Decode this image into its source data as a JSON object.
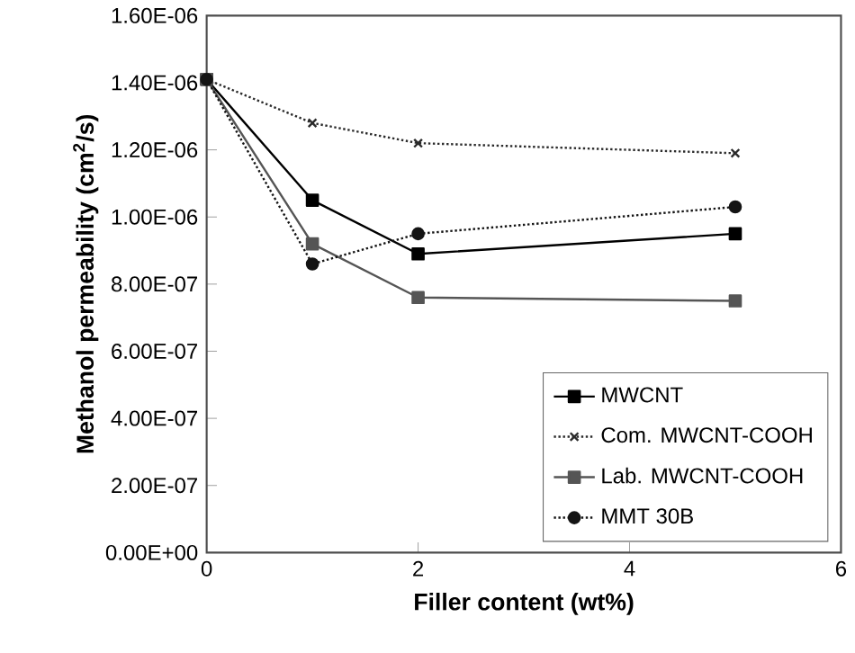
{
  "chart_data": {
    "type": "line",
    "xlabel": "Filler content (wt%)",
    "ylabel": "Methanol permeability (cm$^{2}$/s)",
    "x": [
      0,
      1,
      2,
      5
    ],
    "series": [
      {
        "name": "MWCNT",
        "color": "#000000",
        "marker": "square",
        "line_style": "solid",
        "values": [
          1.41e-06,
          1.05e-06,
          8.9e-07,
          9.5e-07
        ]
      },
      {
        "name": "Com. MWCNT-COOH",
        "color": "#2a2a2a",
        "marker": "cross",
        "line_style": "dotted",
        "values": [
          1.41e-06,
          1.28e-06,
          1.22e-06,
          1.19e-06
        ]
      },
      {
        "name": "Lab. MWCNT-COOH",
        "color": "#555555",
        "marker": "square",
        "line_style": "solid",
        "values": [
          1.41e-06,
          9.2e-07,
          7.6e-07,
          7.5e-07
        ]
      },
      {
        "name": "MMT 30B",
        "color": "#141414",
        "marker": "circle",
        "line_style": "dotted",
        "values": [
          1.41e-06,
          8.6e-07,
          9.5e-07,
          1.03e-06
        ]
      }
    ],
    "xlim": [
      0,
      6
    ],
    "xticks": [
      0,
      2,
      4,
      6
    ],
    "ylim": [
      0,
      1.6e-06
    ],
    "yticks": [
      {
        "value": 0,
        "label": "0.00E+00"
      },
      {
        "value": 2e-07,
        "label": "2.00E-07"
      },
      {
        "value": 4e-07,
        "label": "4.00E-07"
      },
      {
        "value": 6e-07,
        "label": "6.00E-07"
      },
      {
        "value": 8e-07,
        "label": "8.00E-07"
      },
      {
        "value": 1e-06,
        "label": "1.00E-06"
      },
      {
        "value": 1.2e-06,
        "label": "1.20E-06"
      },
      {
        "value": 1.4e-06,
        "label": "1.40E-06"
      },
      {
        "value": 1.6e-06,
        "label": "1.60E-06"
      }
    ],
    "grid": false,
    "legend": "bottom right"
  }
}
